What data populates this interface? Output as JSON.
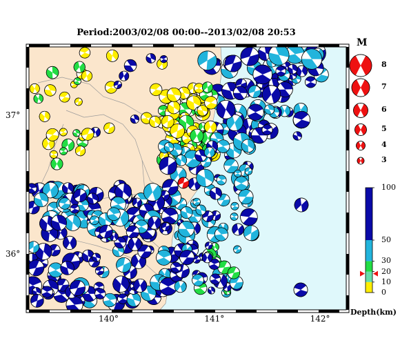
{
  "title": "Period:2003/02/08 00:00--2013/02/08 20:53",
  "map": {
    "lon_range": [
      139.25,
      142.25
    ],
    "lat_range": [
      35.6,
      37.5
    ],
    "x_ticks": [
      {
        "value": 140,
        "label": "140°"
      },
      {
        "value": 141,
        "label": "141°"
      },
      {
        "value": 142,
        "label": "142°"
      }
    ],
    "y_ticks": [
      {
        "value": 37,
        "label": "37°"
      },
      {
        "value": 36,
        "label": "36°"
      }
    ],
    "colors": {
      "land": "#fbe6cc",
      "sea": "#dff8fb",
      "deep": "#0a0aa8",
      "intermediate": "#22b4dc",
      "shallow30": "#22dd44",
      "shallow": "#ffee00",
      "highlight": "#ee1111",
      "frame": "#000000"
    }
  },
  "magnitude_legend": {
    "title": "M",
    "items": [
      {
        "mag": 8,
        "label": "8"
      },
      {
        "mag": 7,
        "label": "7"
      },
      {
        "mag": 6,
        "label": "6"
      },
      {
        "mag": 5,
        "label": "5"
      },
      {
        "mag": 4,
        "label": "4"
      },
      {
        "mag": 3,
        "label": "3"
      }
    ]
  },
  "depth_scale": {
    "title": "Depth(km)",
    "ticks": [
      {
        "value": 0,
        "label": "0"
      },
      {
        "value": 10,
        "label": "10"
      },
      {
        "value": 20,
        "label": "20"
      },
      {
        "value": 30,
        "label": "30"
      },
      {
        "value": 50,
        "label": "50"
      },
      {
        "value": 100,
        "label": "100"
      }
    ],
    "marker_depth": 18
  }
}
